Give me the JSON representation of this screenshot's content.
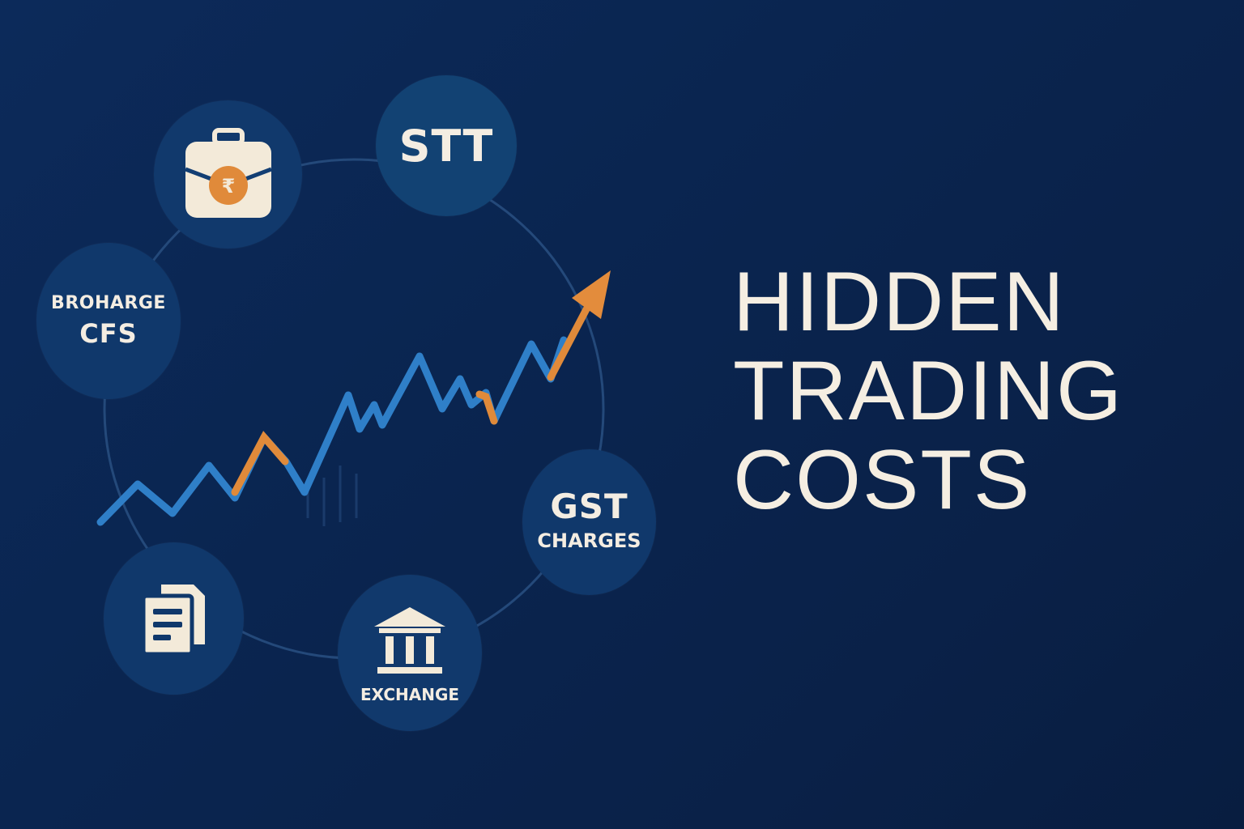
{
  "headline": {
    "line1": "HIDDEN",
    "line2": "TRADING",
    "line3": "COSTS"
  },
  "nodes": {
    "briefcase": {
      "icon": "briefcase-rupee-icon",
      "badge": "₹"
    },
    "stt": {
      "label": "STT"
    },
    "brokerage": {
      "line1": "BROHARGE",
      "line2": "CFS"
    },
    "gst": {
      "line1": "GST",
      "line2": "CHARGES"
    },
    "document": {
      "icon": "document-icon"
    },
    "exchange": {
      "icon": "bank-building-icon",
      "label": "EXCHANGE"
    }
  },
  "colors": {
    "background": "#0a2550",
    "node": "#123e73",
    "text": "#f5eee2",
    "line_blue": "#3a8fd6",
    "accent_orange": "#e58a3a",
    "briefcase_body": "#f3ead9"
  }
}
